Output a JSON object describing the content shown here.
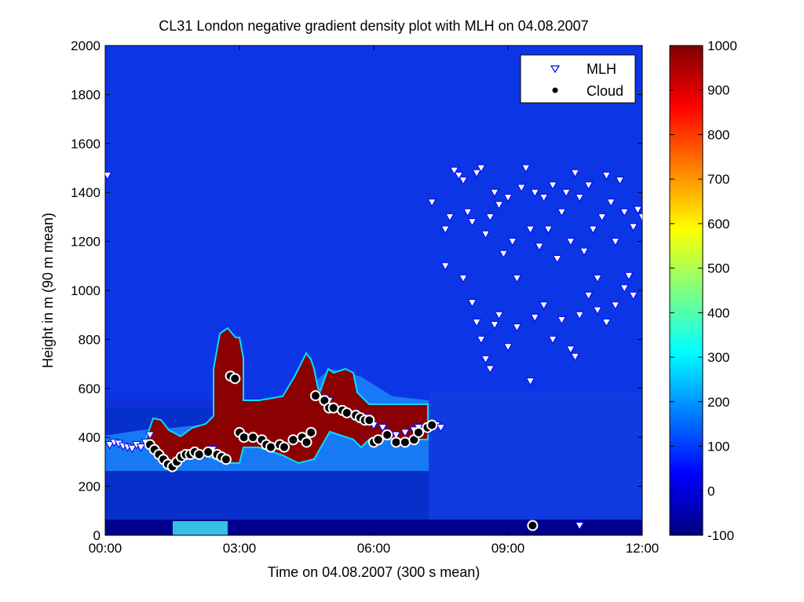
{
  "chart_data": {
    "type": "heatmap",
    "title": "CL31 London negative gradient density plot with MLH on 04.08.2007",
    "xlabel": "Time on 04.08.2007 (300 s mean)",
    "ylabel": "Height in m (90 m mean)",
    "xlim_hours": [
      0,
      12
    ],
    "ylim": [
      0,
      2000
    ],
    "x_ticks": [
      {
        "hour": 0,
        "label": "00:00"
      },
      {
        "hour": 3,
        "label": "03:00"
      },
      {
        "hour": 6,
        "label": "06:00"
      },
      {
        "hour": 9,
        "label": "09:00"
      },
      {
        "hour": 12,
        "label": "12:00"
      }
    ],
    "y_ticks": [
      0,
      200,
      400,
      600,
      800,
      1000,
      1200,
      1400,
      1600,
      1800,
      2000
    ],
    "colorbar": {
      "clim": [
        -100,
        1000
      ],
      "ticks": [
        -100,
        0,
        100,
        200,
        300,
        400,
        500,
        600,
        700,
        800,
        900,
        1000
      ],
      "colormap": "jet"
    },
    "legend": {
      "placement": "top-right",
      "entries": [
        {
          "label": "MLH",
          "marker": "triangle-down",
          "color": "#0000ff"
        },
        {
          "label": "Cloud",
          "marker": "circle",
          "color": "#000000"
        }
      ]
    },
    "series": [
      {
        "name": "MLH",
        "points": [
          [
            0.05,
            1470
          ],
          [
            0.1,
            370
          ],
          [
            0.2,
            380
          ],
          [
            0.3,
            375
          ],
          [
            0.4,
            365
          ],
          [
            0.5,
            360
          ],
          [
            0.6,
            355
          ],
          [
            0.7,
            370
          ],
          [
            0.8,
            360
          ],
          [
            0.9,
            380
          ],
          [
            1.0,
            410
          ],
          [
            2.2,
            330
          ],
          [
            2.3,
            340
          ],
          [
            2.4,
            350
          ],
          [
            4.9,
            560
          ],
          [
            5.0,
            550
          ],
          [
            5.8,
            480
          ],
          [
            6.0,
            450
          ],
          [
            6.2,
            440
          ],
          [
            6.3,
            420
          ],
          [
            6.5,
            410
          ],
          [
            6.7,
            420
          ],
          [
            6.9,
            430
          ],
          [
            7.0,
            440
          ],
          [
            7.2,
            430
          ],
          [
            7.4,
            450
          ],
          [
            7.5,
            440
          ],
          [
            7.3,
            1360
          ],
          [
            7.6,
            1250
          ],
          [
            7.7,
            1300
          ],
          [
            7.8,
            1490
          ],
          [
            7.9,
            1470
          ],
          [
            8.0,
            1450
          ],
          [
            8.1,
            1320
          ],
          [
            8.2,
            1280
          ],
          [
            8.3,
            1480
          ],
          [
            8.4,
            1500
          ],
          [
            8.5,
            1230
          ],
          [
            8.6,
            1300
          ],
          [
            8.7,
            1400
          ],
          [
            8.8,
            1350
          ],
          [
            8.9,
            1150
          ],
          [
            9.0,
            1380
          ],
          [
            9.1,
            1200
          ],
          [
            9.2,
            1050
          ],
          [
            9.3,
            1420
          ],
          [
            9.4,
            1500
          ],
          [
            9.5,
            1250
          ],
          [
            9.6,
            1400
          ],
          [
            9.7,
            1180
          ],
          [
            9.8,
            1380
          ],
          [
            9.9,
            1250
          ],
          [
            10.0,
            1430
          ],
          [
            10.1,
            1130
          ],
          [
            10.2,
            1320
          ],
          [
            10.3,
            1400
          ],
          [
            10.4,
            1200
          ],
          [
            10.5,
            1480
          ],
          [
            10.6,
            1380
          ],
          [
            10.7,
            1160
          ],
          [
            10.8,
            1430
          ],
          [
            10.9,
            1250
          ],
          [
            11.0,
            1050
          ],
          [
            11.1,
            1300
          ],
          [
            11.2,
            1470
          ],
          [
            11.3,
            1360
          ],
          [
            11.4,
            1200
          ],
          [
            11.5,
            1450
          ],
          [
            11.6,
            1320
          ],
          [
            11.7,
            1060
          ],
          [
            11.8,
            1260
          ],
          [
            11.9,
            1330
          ],
          [
            12.0,
            1300
          ],
          [
            7.6,
            1100
          ],
          [
            8.0,
            1050
          ],
          [
            8.2,
            950
          ],
          [
            8.3,
            870
          ],
          [
            8.4,
            800
          ],
          [
            8.5,
            720
          ],
          [
            8.6,
            680
          ],
          [
            8.7,
            860
          ],
          [
            8.8,
            900
          ],
          [
            9.0,
            770
          ],
          [
            9.2,
            850
          ],
          [
            9.5,
            630
          ],
          [
            9.6,
            890
          ],
          [
            9.8,
            940
          ],
          [
            10.0,
            800
          ],
          [
            10.2,
            880
          ],
          [
            10.4,
            760
          ],
          [
            10.5,
            730
          ],
          [
            10.6,
            900
          ],
          [
            10.8,
            980
          ],
          [
            11.0,
            920
          ],
          [
            11.2,
            870
          ],
          [
            11.4,
            940
          ],
          [
            11.6,
            1010
          ],
          [
            11.8,
            980
          ],
          [
            10.6,
            40
          ]
        ]
      },
      {
        "name": "Cloud",
        "points": [
          [
            1.0,
            370
          ],
          [
            1.1,
            350
          ],
          [
            1.2,
            330
          ],
          [
            1.3,
            310
          ],
          [
            1.4,
            290
          ],
          [
            1.5,
            280
          ],
          [
            1.6,
            300
          ],
          [
            1.7,
            320
          ],
          [
            1.8,
            330
          ],
          [
            1.9,
            330
          ],
          [
            2.0,
            340
          ],
          [
            2.1,
            330
          ],
          [
            2.3,
            340
          ],
          [
            2.5,
            330
          ],
          [
            2.6,
            320
          ],
          [
            2.7,
            310
          ],
          [
            2.8,
            650
          ],
          [
            2.9,
            640
          ],
          [
            3.0,
            420
          ],
          [
            3.1,
            400
          ],
          [
            3.3,
            400
          ],
          [
            3.5,
            390
          ],
          [
            3.6,
            370
          ],
          [
            3.7,
            360
          ],
          [
            3.9,
            370
          ],
          [
            4.0,
            360
          ],
          [
            4.2,
            390
          ],
          [
            4.4,
            400
          ],
          [
            4.5,
            380
          ],
          [
            4.6,
            420
          ],
          [
            4.7,
            570
          ],
          [
            4.9,
            550
          ],
          [
            5.0,
            520
          ],
          [
            5.1,
            520
          ],
          [
            5.3,
            510
          ],
          [
            5.4,
            500
          ],
          [
            5.6,
            490
          ],
          [
            5.7,
            480
          ],
          [
            5.8,
            470
          ],
          [
            5.9,
            470
          ],
          [
            6.0,
            380
          ],
          [
            6.1,
            390
          ],
          [
            6.3,
            410
          ],
          [
            6.5,
            380
          ],
          [
            6.7,
            380
          ],
          [
            6.9,
            390
          ],
          [
            7.0,
            420
          ],
          [
            7.2,
            440
          ],
          [
            7.3,
            450
          ],
          [
            9.55,
            40
          ]
        ]
      }
    ]
  }
}
